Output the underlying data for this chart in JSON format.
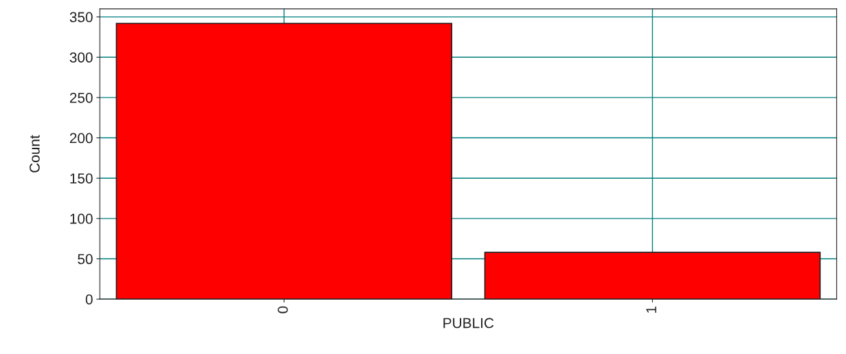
{
  "chart_data": {
    "type": "bar",
    "xlabel": "PUBLIC",
    "ylabel": "Count",
    "categories": [
      "0",
      "1"
    ],
    "values": [
      342,
      58
    ],
    "color": "#ff0000",
    "ylim": [
      0,
      360
    ],
    "yticks": [
      0,
      50,
      100,
      150,
      200,
      250,
      300,
      350
    ],
    "grid": true
  }
}
